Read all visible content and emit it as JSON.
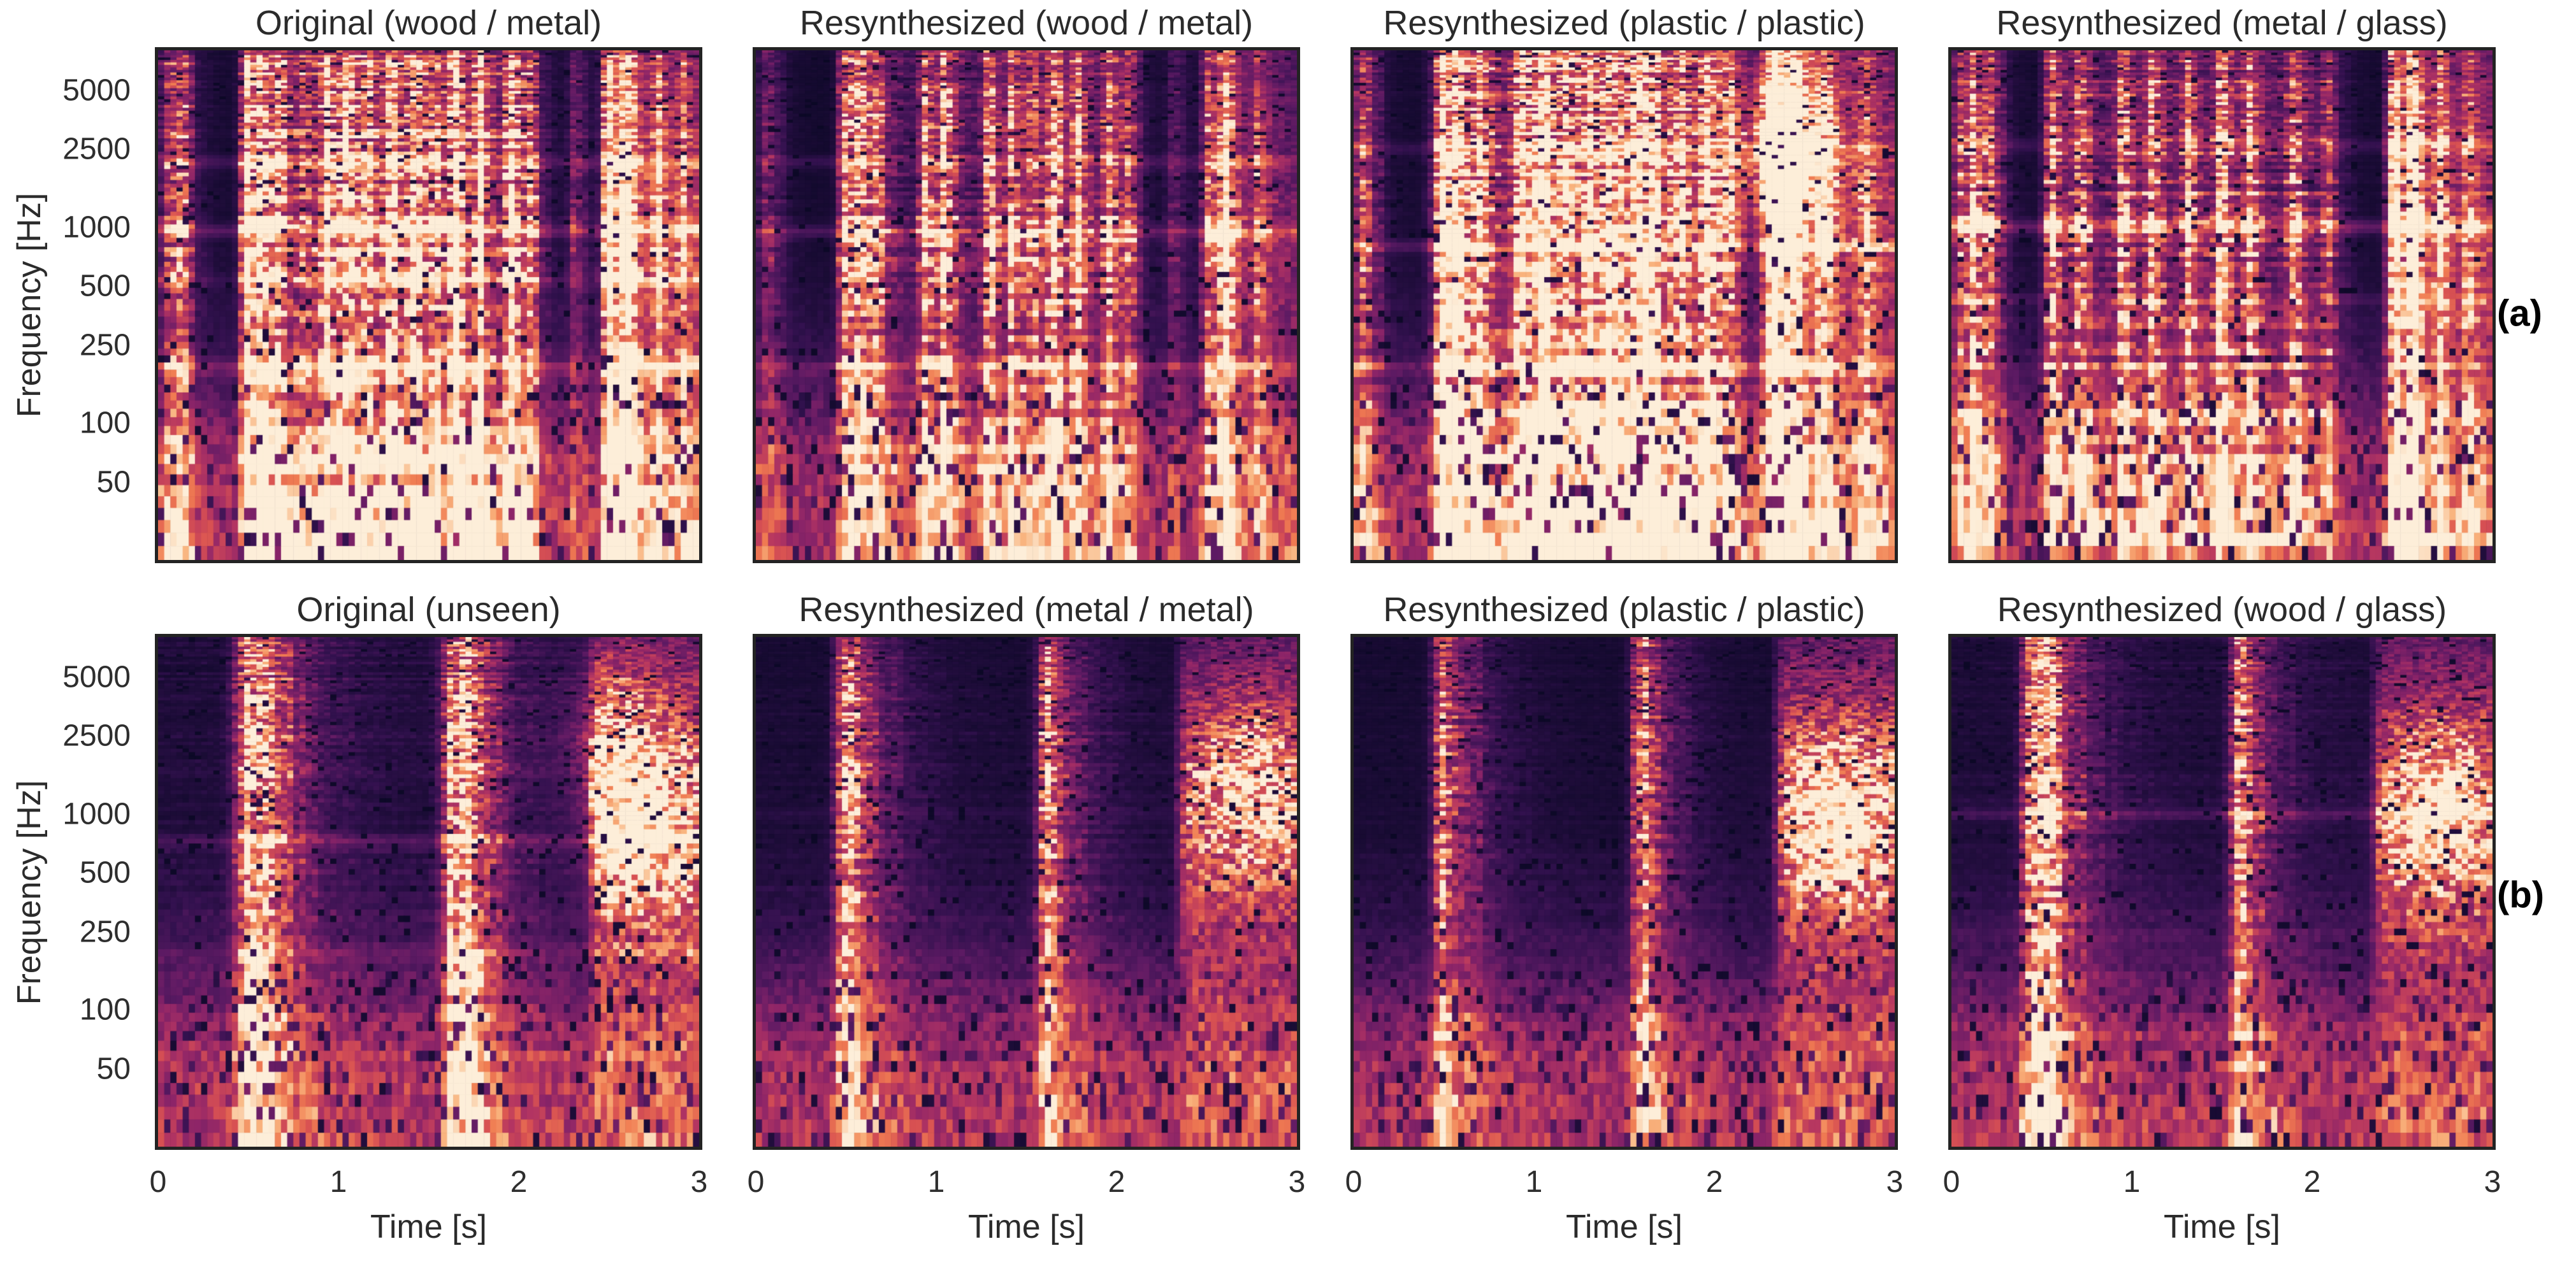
{
  "figure": {
    "background": "#ffffff",
    "text_color": "#2b2b2b",
    "panel_border_color": "#232323"
  },
  "side_labels": [
    "(a)",
    "(b)"
  ],
  "chart_data": {
    "type": "heatmap",
    "subtype": "log-frequency spectrogram grid",
    "grid": {
      "rows": 2,
      "cols": 4
    },
    "note": "Eight spectrograms of impact-sound sequences. Row (a): dense rhythmic impact pattern; row (b): sparse impacts at ~0.5 s and ~1.6 s followed by a broadband wash from ~2.3-3.0 s. Columns compare an original recording with resynthesized versions for different material pairs. Rocket/magma-style colormap on log frequency axis.",
    "axes": {
      "x": {
        "label": "Time [s]",
        "ticks": [
          "0",
          "1",
          "2",
          "3"
        ],
        "tick_values": [
          0,
          1,
          2,
          3
        ],
        "range": [
          0,
          3
        ]
      },
      "y": {
        "label": "Frequency [Hz]",
        "ticks": [
          "5000",
          "2500",
          "1000",
          "500",
          "250",
          "100",
          "50"
        ],
        "tick_values": [
          5000,
          2500,
          1000,
          500,
          250,
          100,
          50
        ],
        "range": [
          20,
          8000
        ],
        "scale": "log"
      }
    },
    "colormap": {
      "name": "rocket-like",
      "stops": [
        [
          0.0,
          "#0a0824"
        ],
        [
          0.15,
          "#32114e"
        ],
        [
          0.3,
          "#5c1a63"
        ],
        [
          0.45,
          "#8b2468"
        ],
        [
          0.58,
          "#b23462"
        ],
        [
          0.7,
          "#d85152"
        ],
        [
          0.8,
          "#f07c52"
        ],
        [
          0.9,
          "#f9b37d"
        ],
        [
          1.0,
          "#fdeed9"
        ]
      ]
    },
    "render_settings": {
      "time_bins": 88,
      "freq_bins": 100,
      "warp_alpha": 0.3
    },
    "panels": [
      {
        "id": "a1",
        "row": 0,
        "col": 0,
        "row_label": "(a)",
        "title": "Original (wood / metal)",
        "render": {
          "seed": 11,
          "style": "rhythm",
          "haze": 0.13,
          "sustain": 0.17,
          "events": [
            [
              0.07,
              0.5
            ],
            [
              0.14,
              0.45
            ],
            [
              0.5,
              0.95
            ],
            [
              0.58,
              0.75
            ],
            [
              0.68,
              0.55
            ],
            [
              0.82,
              0.4
            ],
            [
              0.95,
              0.85
            ],
            [
              1.06,
              0.9
            ],
            [
              1.18,
              0.55
            ],
            [
              1.3,
              0.9
            ],
            [
              1.43,
              0.8
            ],
            [
              1.55,
              0.65
            ],
            [
              1.66,
              0.9
            ],
            [
              1.79,
              0.75
            ],
            [
              1.96,
              0.8
            ],
            [
              2.08,
              0.55
            ],
            [
              2.32,
              0.4
            ],
            [
              2.5,
              1.0
            ],
            [
              2.6,
              0.8
            ],
            [
              2.78,
              0.45
            ],
            [
              2.92,
              0.4
            ]
          ],
          "lines": [
            [
              190,
              0.5
            ],
            [
              950,
              0.48
            ],
            [
              2150,
              0.33
            ],
            [
              520,
              0.18
            ]
          ],
          "wash": [
            2.45,
            3.0,
            0.3
          ],
          "gaps": [
            [
              0.2,
              0.44
            ],
            [
              2.12,
              2.44
            ]
          ],
          "blobs": []
        }
      },
      {
        "id": "a2",
        "row": 0,
        "col": 1,
        "row_label": "(a)",
        "title": "Resynthesized (wood / metal)",
        "render": {
          "seed": 22,
          "style": "rhythm",
          "haze": 0.06,
          "sustain": 0.12,
          "events": [
            [
              0.07,
              0.4
            ],
            [
              0.5,
              0.9
            ],
            [
              0.58,
              0.7
            ],
            [
              0.68,
              0.5
            ],
            [
              0.95,
              0.8
            ],
            [
              1.06,
              0.85
            ],
            [
              1.3,
              0.85
            ],
            [
              1.43,
              0.75
            ],
            [
              1.55,
              0.6
            ],
            [
              1.66,
              0.85
            ],
            [
              1.79,
              0.7
            ],
            [
              1.96,
              0.75
            ],
            [
              2.08,
              0.5
            ],
            [
              2.32,
              0.35
            ],
            [
              2.52,
              0.9
            ],
            [
              2.62,
              0.7
            ],
            [
              2.8,
              0.4
            ]
          ],
          "lines": [
            [
              190,
              0.45
            ],
            [
              950,
              0.45
            ],
            [
              2150,
              0.3
            ]
          ],
          "wash": [
            2.5,
            3.0,
            0.25
          ],
          "gaps": [
            [
              0.16,
              0.44
            ],
            [
              2.12,
              2.46
            ]
          ],
          "blobs": []
        }
      },
      {
        "id": "a3",
        "row": 0,
        "col": 2,
        "row_label": "(a)",
        "title": "Resynthesized (plastic / plastic)",
        "render": {
          "seed": 33,
          "style": "rhythm",
          "haze": 0.11,
          "sustain": 0.2,
          "eventWidth": 0.045,
          "events": [
            [
              0.07,
              0.55
            ],
            [
              0.5,
              0.9
            ],
            [
              0.6,
              0.8
            ],
            [
              0.72,
              0.6
            ],
            [
              0.95,
              0.85
            ],
            [
              1.07,
              0.9
            ],
            [
              1.2,
              0.6
            ],
            [
              1.32,
              0.9
            ],
            [
              1.45,
              0.8
            ],
            [
              1.58,
              0.7
            ],
            [
              1.68,
              0.85
            ],
            [
              1.82,
              0.7
            ],
            [
              1.97,
              0.75
            ],
            [
              2.1,
              0.55
            ],
            [
              2.35,
              0.85
            ],
            [
              2.45,
              0.6
            ],
            [
              2.62,
              0.5
            ],
            [
              2.85,
              0.4
            ]
          ],
          "lines": [
            [
              800,
              0.42
            ],
            [
              190,
              0.28
            ],
            [
              2500,
              0.26
            ]
          ],
          "wash": [
            2.2,
            3.0,
            0.35
          ],
          "gaps": [
            [
              0.18,
              0.44
            ]
          ],
          "blobs": [
            [
              2.38,
              2500,
              0.75
            ]
          ]
        }
      },
      {
        "id": "a4",
        "row": 0,
        "col": 3,
        "row_label": "(a)",
        "title": "Resynthesized (metal / glass)",
        "render": {
          "seed": 44,
          "style": "rhythm",
          "haze": 0.1,
          "sustain": 0.15,
          "events": [
            [
              0.06,
              0.7
            ],
            [
              0.13,
              0.6
            ],
            [
              0.22,
              0.5
            ],
            [
              0.56,
              0.7
            ],
            [
              0.72,
              0.55
            ],
            [
              0.96,
              0.65
            ],
            [
              1.12,
              0.75
            ],
            [
              1.32,
              0.65
            ],
            [
              1.5,
              0.75
            ],
            [
              1.66,
              0.6
            ],
            [
              1.9,
              0.65
            ],
            [
              2.1,
              0.5
            ],
            [
              2.46,
              0.95
            ],
            [
              2.57,
              0.85
            ],
            [
              2.72,
              0.5
            ],
            [
              2.88,
              0.45
            ]
          ],
          "lines": [
            [
              1000,
              0.6
            ],
            [
              2600,
              0.28
            ],
            [
              430,
              0.22
            ]
          ],
          "wash": [
            2.4,
            3.0,
            0.3
          ],
          "gaps": [
            [
              0.3,
              0.5
            ],
            [
              2.15,
              2.4
            ]
          ],
          "blobs": []
        }
      },
      {
        "id": "b1",
        "row": 1,
        "col": 0,
        "row_label": "(b)",
        "title": "Original (unseen)",
        "render": {
          "seed": 55,
          "style": "sparse",
          "haze": 0.05,
          "sustain": 0,
          "events": [
            [
              0.5,
              1.0,
              0.05,
              0.22
            ],
            [
              0.6,
              0.45,
              0.03,
              0.1
            ],
            [
              1.64,
              0.95,
              0.045,
              0.18
            ],
            [
              1.74,
              0.4,
              0.03,
              0.1
            ]
          ],
          "lines": [
            [
              720,
              0.3
            ],
            [
              200,
              0.2
            ]
          ],
          "wash": [
            2.35,
            3.0,
            0.7
          ],
          "gaps": [],
          "blobs": [
            [
              2.65,
              800,
              0.5
            ],
            [
              2.5,
              2500,
              0.35
            ]
          ]
        }
      },
      {
        "id": "b2",
        "row": 1,
        "col": 1,
        "row_label": "(b)",
        "title": "Resynthesized (metal / metal)",
        "render": {
          "seed": 66,
          "style": "sparse",
          "haze": 0.03,
          "sustain": 0,
          "events": [
            [
              0.5,
              0.9,
              0.04,
              0.18
            ],
            [
              1.62,
              0.85,
              0.04,
              0.15
            ]
          ],
          "lines": [
            [
              1000,
              0.12
            ]
          ],
          "wash": [
            2.3,
            3.0,
            0.62
          ],
          "gaps": [],
          "blobs": [
            [
              2.75,
              1500,
              0.4
            ]
          ]
        }
      },
      {
        "id": "b3",
        "row": 1,
        "col": 2,
        "row_label": "(b)",
        "title": "Resynthesized (plastic / plastic)",
        "render": {
          "seed": 77,
          "style": "sparse",
          "haze": 0.02,
          "sustain": 0,
          "events": [
            [
              0.5,
              0.85,
              0.04,
              0.16
            ],
            [
              1.6,
              0.8,
              0.04,
              0.14
            ]
          ],
          "lines": [],
          "wash": [
            2.3,
            3.0,
            0.68
          ],
          "gaps": [],
          "blobs": [
            [
              2.7,
              900,
              0.55
            ]
          ]
        }
      },
      {
        "id": "b4",
        "row": 1,
        "col": 3,
        "row_label": "(b)",
        "title": "Resynthesized (wood / glass)",
        "render": {
          "seed": 88,
          "style": "sparse",
          "haze": 0.04,
          "sustain": 0,
          "events": [
            [
              0.45,
              0.9,
              0.04,
              0.2
            ],
            [
              0.55,
              0.5,
              0.03,
              0.1
            ],
            [
              1.6,
              0.75,
              0.04,
              0.15
            ]
          ],
          "lines": [
            [
              1000,
              0.3
            ],
            [
              240,
              0.14
            ]
          ],
          "wash": [
            2.3,
            3.0,
            0.62
          ],
          "gaps": [],
          "blobs": [
            [
              2.7,
              1000,
              0.5
            ]
          ]
        }
      }
    ]
  }
}
